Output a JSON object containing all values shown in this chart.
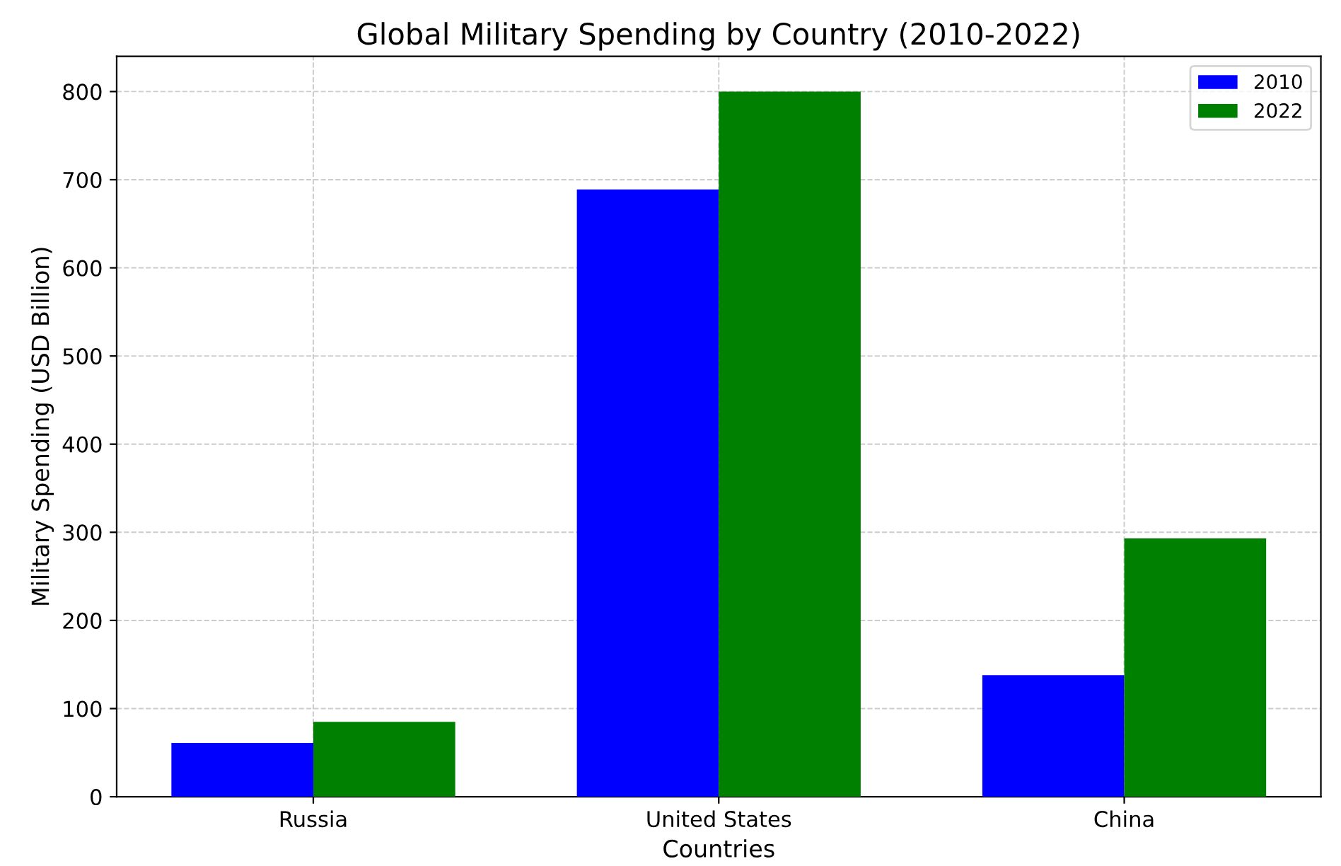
{
  "chart_data": {
    "type": "bar",
    "title": "Global Military Spending by Country (2010-2022)",
    "xlabel": "Countries",
    "ylabel": "Military Spending (USD Billion)",
    "categories": [
      "Russia",
      "United States",
      "China"
    ],
    "series": [
      {
        "name": "2010",
        "color": "#0000ff",
        "values": [
          61,
          689,
          138
        ]
      },
      {
        "name": "2022",
        "color": "#008000",
        "values": [
          85,
          800,
          293
        ]
      }
    ],
    "ylim": [
      0,
      840
    ],
    "yticks": [
      0,
      100,
      200,
      300,
      400,
      500,
      600,
      700,
      800
    ],
    "grid": true,
    "legend": "top right"
  }
}
